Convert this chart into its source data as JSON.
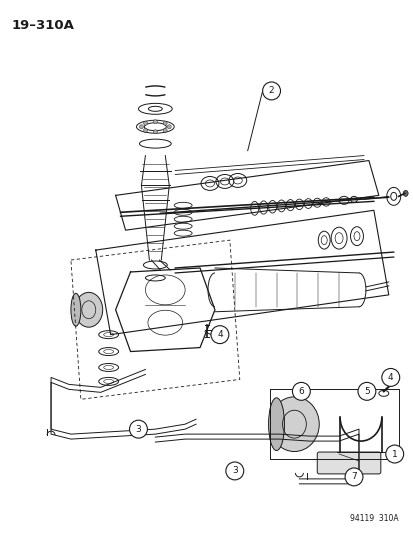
{
  "title": "19–310A",
  "footer": "94119  310A",
  "bg_color": "#ffffff",
  "text_color": "#1a1a1a",
  "diagram_color": "#1a1a1a",
  "fig_width": 4.14,
  "fig_height": 5.33,
  "dpi": 100
}
